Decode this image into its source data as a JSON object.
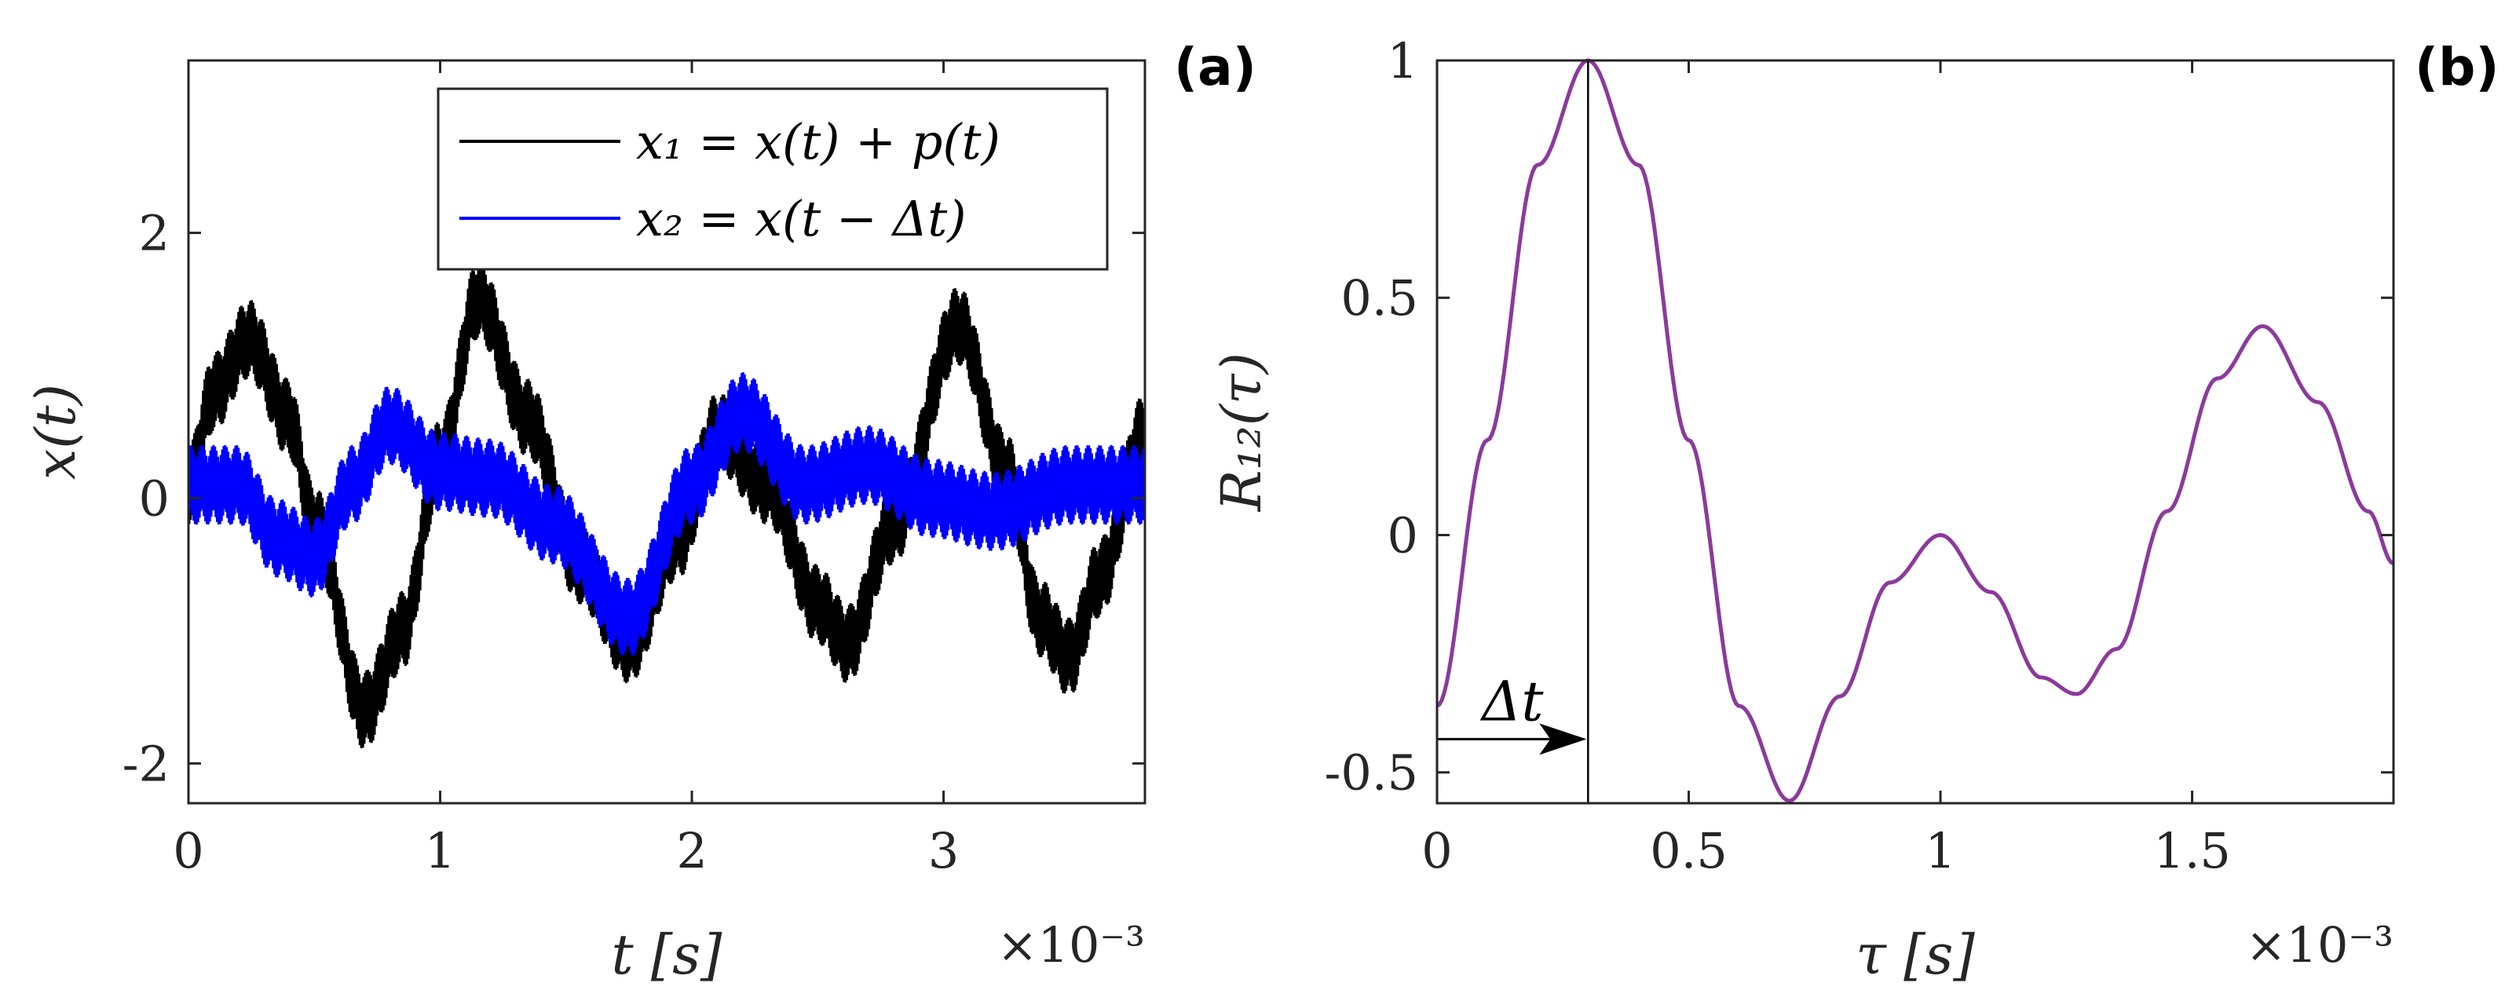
{
  "chart_data": [
    {
      "panel": "(a)",
      "type": "line",
      "xlabel": "t [s]",
      "ylabel": "x(t)",
      "x_exponent_label": "×10⁻³",
      "xlim": [
        0,
        3.8
      ],
      "ylim": [
        -2.3,
        3.3
      ],
      "xticks": [
        0,
        1,
        2,
        3
      ],
      "xtick_labels": [
        "0",
        "1",
        "2",
        "3"
      ],
      "yticks": [
        -2,
        0,
        2
      ],
      "ytick_labels": [
        "-2",
        "0",
        "2"
      ],
      "legend_position": "top-right",
      "series": [
        {
          "name": "x₁ = x(t) + p(t)",
          "color": "#000000",
          "noise_amplitude": 0.3,
          "envelope_x": [
            0,
            0.1,
            0.24,
            0.4,
            0.5,
            0.7,
            0.85,
            1.0,
            1.15,
            1.35,
            1.55,
            1.75,
            1.95,
            2.1,
            2.3,
            2.5,
            2.62,
            2.8,
            3.06,
            3.25,
            3.38,
            3.5,
            3.62,
            3.8
          ],
          "envelope_y": [
            0.1,
            0.8,
            1.2,
            0.6,
            -0.2,
            -1.6,
            -1.0,
            0.3,
            1.5,
            0.6,
            -0.5,
            -1.1,
            -0.3,
            0.5,
            0.1,
            -0.8,
            -1.1,
            -0.2,
            1.3,
            0.2,
            -0.9,
            -1.2,
            -0.6,
            0.5
          ]
        },
        {
          "name": "x₂ = x(t − Δt)",
          "color": "#0000ff",
          "noise_amplitude": 0.3,
          "envelope_x": [
            0,
            0.2,
            0.35,
            0.5,
            0.65,
            0.8,
            1.0,
            1.2,
            1.45,
            1.75,
            2.0,
            2.2,
            2.45,
            2.7,
            2.95,
            3.2,
            3.5,
            3.8
          ],
          "envelope_y": [
            0.1,
            0.1,
            -0.3,
            -0.45,
            0.1,
            0.55,
            0.2,
            0.15,
            -0.2,
            -0.9,
            0.1,
            0.65,
            0.1,
            0.25,
            0.0,
            -0.1,
            0.1,
            0.1
          ]
        }
      ]
    },
    {
      "panel": "(b)",
      "type": "line",
      "xlabel": "τ [s]",
      "ylabel": "R₁₂(τ)",
      "x_exponent_label": "×10⁻³",
      "xlim": [
        0,
        1.9
      ],
      "ylim": [
        -0.565,
        1.0
      ],
      "xticks": [
        0,
        0.5,
        1,
        1.5
      ],
      "xtick_labels": [
        "0",
        "0.5",
        "1",
        "1.5"
      ],
      "yticks": [
        -0.5,
        0,
        0.5,
        1
      ],
      "ytick_labels": [
        "-0.5",
        "0",
        "0.5",
        "1"
      ],
      "series": [
        {
          "name": "R₁₂(τ)",
          "color": "#8b3a9c",
          "x": [
            0,
            0.1,
            0.2,
            0.3,
            0.4,
            0.5,
            0.6,
            0.7,
            0.8,
            0.9,
            1.0,
            1.1,
            1.2,
            1.27,
            1.35,
            1.45,
            1.55,
            1.64,
            1.75,
            1.85,
            1.9
          ],
          "y": [
            -0.36,
            0.2,
            0.78,
            1.0,
            0.78,
            0.2,
            -0.36,
            -0.56,
            -0.34,
            -0.1,
            0.0,
            -0.12,
            -0.3,
            -0.335,
            -0.24,
            0.05,
            0.33,
            0.44,
            0.28,
            0.05,
            -0.06
          ]
        }
      ],
      "annotation": {
        "label": "Δt",
        "x": 0.3,
        "arrow_from_x": 0,
        "arrow_y": -0.43
      }
    }
  ]
}
